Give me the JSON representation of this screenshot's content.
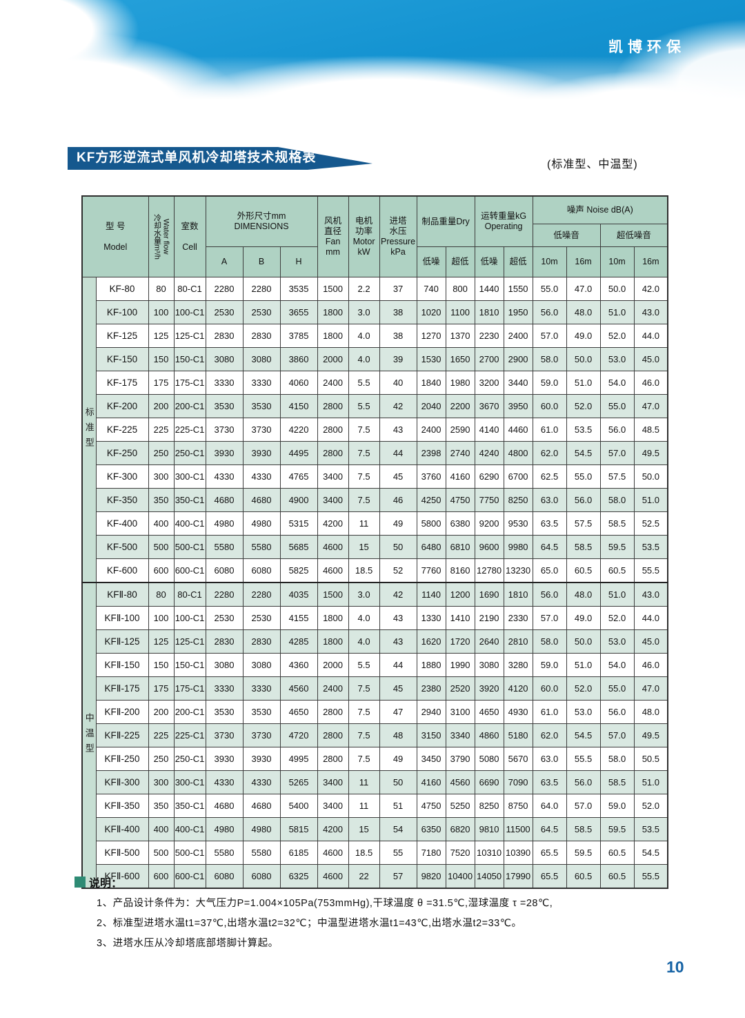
{
  "banner": {
    "brand": "凯博环保"
  },
  "title": {
    "text": "KF方形逆流式单风机冷却塔技术规格表",
    "subtitle": "(标准型、中温型)"
  },
  "colors": {
    "banner_blue": "#1493d1",
    "title_bar_blue": "#15588e",
    "header_green": "#afd2c3",
    "row_green": "#d9e8e1",
    "strip_green": "#c7dfd3",
    "note_square_green": "#2e8b74",
    "page_number_blue": "#1663a5"
  },
  "table": {
    "headers": {
      "model": {
        "lines": [
          "型 号",
          "",
          "Model"
        ]
      },
      "water_flow": {
        "zh": "冷却水量m³/h",
        "en": "Water flow"
      },
      "cell": {
        "lines": [
          "室数",
          "",
          "Cell"
        ]
      },
      "dimensions": {
        "lines": [
          "外形尺寸mm",
          "DIMENSIONS"
        ],
        "subs": [
          "A",
          "B",
          "H"
        ]
      },
      "fan": {
        "lines": [
          "风机",
          "直径",
          "Fan",
          "mm"
        ]
      },
      "motor": {
        "lines": [
          "电机",
          "功率",
          "Motor",
          "kW"
        ]
      },
      "pressure": {
        "lines": [
          "进塔",
          "水压",
          "Pressure",
          "kPa"
        ]
      },
      "dry": {
        "lines": [
          "制品重量Dry"
        ]
      },
      "operating": {
        "lines": [
          "运转重量kG",
          "Operating"
        ]
      },
      "weight_sub_low": "低噪",
      "weight_sub_ultra": "超低",
      "noise": {
        "label": "噪声 Noise dB(A)",
        "low_label": "低噪音",
        "ultra_label": "超低噪音",
        "distances": [
          "10m",
          "16m",
          "10m",
          "16m"
        ]
      }
    },
    "sections": [
      {
        "group": "标准型",
        "rows": [
          [
            "KF-80",
            "80",
            "80-C1",
            "2280",
            "2280",
            "3535",
            "1500",
            "2.2",
            "37",
            "740",
            "800",
            "1440",
            "1550",
            "55.0",
            "47.0",
            "50.0",
            "42.0"
          ],
          [
            "KF-100",
            "100",
            "100-C1",
            "2530",
            "2530",
            "3655",
            "1800",
            "3.0",
            "38",
            "1020",
            "1100",
            "1810",
            "1950",
            "56.0",
            "48.0",
            "51.0",
            "43.0"
          ],
          [
            "KF-125",
            "125",
            "125-C1",
            "2830",
            "2830",
            "3785",
            "1800",
            "4.0",
            "38",
            "1270",
            "1370",
            "2230",
            "2400",
            "57.0",
            "49.0",
            "52.0",
            "44.0"
          ],
          [
            "KF-150",
            "150",
            "150-C1",
            "3080",
            "3080",
            "3860",
            "2000",
            "4.0",
            "39",
            "1530",
            "1650",
            "2700",
            "2900",
            "58.0",
            "50.0",
            "53.0",
            "45.0"
          ],
          [
            "KF-175",
            "175",
            "175-C1",
            "3330",
            "3330",
            "4060",
            "2400",
            "5.5",
            "40",
            "1840",
            "1980",
            "3200",
            "3440",
            "59.0",
            "51.0",
            "54.0",
            "46.0"
          ],
          [
            "KF-200",
            "200",
            "200-C1",
            "3530",
            "3530",
            "4150",
            "2800",
            "5.5",
            "42",
            "2040",
            "2200",
            "3670",
            "3950",
            "60.0",
            "52.0",
            "55.0",
            "47.0"
          ],
          [
            "KF-225",
            "225",
            "225-C1",
            "3730",
            "3730",
            "4220",
            "2800",
            "7.5",
            "43",
            "2400",
            "2590",
            "4140",
            "4460",
            "61.0",
            "53.5",
            "56.0",
            "48.5"
          ],
          [
            "KF-250",
            "250",
            "250-C1",
            "3930",
            "3930",
            "4495",
            "2800",
            "7.5",
            "44",
            "2398",
            "2740",
            "4240",
            "4800",
            "62.0",
            "54.5",
            "57.0",
            "49.5"
          ],
          [
            "KF-300",
            "300",
            "300-C1",
            "4330",
            "4330",
            "4765",
            "3400",
            "7.5",
            "45",
            "3760",
            "4160",
            "6290",
            "6700",
            "62.5",
            "55.0",
            "57.5",
            "50.0"
          ],
          [
            "KF-350",
            "350",
            "350-C1",
            "4680",
            "4680",
            "4900",
            "3400",
            "7.5",
            "46",
            "4250",
            "4750",
            "7750",
            "8250",
            "63.0",
            "56.0",
            "58.0",
            "51.0"
          ],
          [
            "KF-400",
            "400",
            "400-C1",
            "4980",
            "4980",
            "5315",
            "4200",
            "11",
            "49",
            "5800",
            "6380",
            "9200",
            "9530",
            "63.5",
            "57.5",
            "58.5",
            "52.5"
          ],
          [
            "KF-500",
            "500",
            "500-C1",
            "5580",
            "5580",
            "5685",
            "4600",
            "15",
            "50",
            "6480",
            "6810",
            "9600",
            "9980",
            "64.5",
            "58.5",
            "59.5",
            "53.5"
          ],
          [
            "KF-600",
            "600",
            "600-C1",
            "6080",
            "6080",
            "5825",
            "4600",
            "18.5",
            "52",
            "7760",
            "8160",
            "12780",
            "13230",
            "65.0",
            "60.5",
            "60.5",
            "55.5"
          ]
        ]
      },
      {
        "group": "中温型",
        "rows": [
          [
            "KFⅡ-80",
            "80",
            "80-C1",
            "2280",
            "2280",
            "4035",
            "1500",
            "3.0",
            "42",
            "1140",
            "1200",
            "1690",
            "1810",
            "56.0",
            "48.0",
            "51.0",
            "43.0"
          ],
          [
            "KFⅡ-100",
            "100",
            "100-C1",
            "2530",
            "2530",
            "4155",
            "1800",
            "4.0",
            "43",
            "1330",
            "1410",
            "2190",
            "2330",
            "57.0",
            "49.0",
            "52.0",
            "44.0"
          ],
          [
            "KFⅡ-125",
            "125",
            "125-C1",
            "2830",
            "2830",
            "4285",
            "1800",
            "4.0",
            "43",
            "1620",
            "1720",
            "2640",
            "2810",
            "58.0",
            "50.0",
            "53.0",
            "45.0"
          ],
          [
            "KFⅡ-150",
            "150",
            "150-C1",
            "3080",
            "3080",
            "4360",
            "2000",
            "5.5",
            "44",
            "1880",
            "1990",
            "3080",
            "3280",
            "59.0",
            "51.0",
            "54.0",
            "46.0"
          ],
          [
            "KFⅡ-175",
            "175",
            "175-C1",
            "3330",
            "3330",
            "4560",
            "2400",
            "7.5",
            "45",
            "2380",
            "2520",
            "3920",
            "4120",
            "60.0",
            "52.0",
            "55.0",
            "47.0"
          ],
          [
            "KFⅡ-200",
            "200",
            "200-C1",
            "3530",
            "3530",
            "4650",
            "2800",
            "7.5",
            "47",
            "2940",
            "3100",
            "4650",
            "4930",
            "61.0",
            "53.0",
            "56.0",
            "48.0"
          ],
          [
            "KFⅡ-225",
            "225",
            "225-C1",
            "3730",
            "3730",
            "4720",
            "2800",
            "7.5",
            "48",
            "3150",
            "3340",
            "4860",
            "5180",
            "62.0",
            "54.5",
            "57.0",
            "49.5"
          ],
          [
            "KFⅡ-250",
            "250",
            "250-C1",
            "3930",
            "3930",
            "4995",
            "2800",
            "7.5",
            "49",
            "3450",
            "3790",
            "5080",
            "5670",
            "63.0",
            "55.5",
            "58.0",
            "50.5"
          ],
          [
            "KFⅡ-300",
            "300",
            "300-C1",
            "4330",
            "4330",
            "5265",
            "3400",
            "11",
            "50",
            "4160",
            "4560",
            "6690",
            "7090",
            "63.5",
            "56.0",
            "58.5",
            "51.0"
          ],
          [
            "KFⅡ-350",
            "350",
            "350-C1",
            "4680",
            "4680",
            "5400",
            "3400",
            "11",
            "51",
            "4750",
            "5250",
            "8250",
            "8750",
            "64.0",
            "57.0",
            "59.0",
            "52.0"
          ],
          [
            "KFⅡ-400",
            "400",
            "400-C1",
            "4980",
            "4980",
            "5815",
            "4200",
            "15",
            "54",
            "6350",
            "6820",
            "9810",
            "11500",
            "64.5",
            "58.5",
            "59.5",
            "53.5"
          ],
          [
            "KFⅡ-500",
            "500",
            "500-C1",
            "5580",
            "5580",
            "6185",
            "4600",
            "18.5",
            "55",
            "7180",
            "7520",
            "10310",
            "10390",
            "65.5",
            "59.5",
            "60.5",
            "54.5"
          ],
          [
            "KFⅡ-600",
            "600",
            "600-C1",
            "6080",
            "6080",
            "6325",
            "4600",
            "22",
            "57",
            "9820",
            "10400",
            "14050",
            "17990",
            "65.5",
            "60.5",
            "60.5",
            "55.5"
          ]
        ]
      }
    ]
  },
  "notes": {
    "heading": "说明：",
    "items": [
      "1、产品设计条件为：大气压力P=1.004×105Pa(753mmHg),干球温度 θ =31.5℃,湿球温度 τ =28℃,",
      "2、标准型进塔水温t1=37℃,出塔水温t2=32℃；中温型进塔水温t1=43℃,出塔水温t2=33℃。",
      "3、进塔水压从冷却塔底部塔脚计算起。"
    ]
  },
  "page_number": "10"
}
